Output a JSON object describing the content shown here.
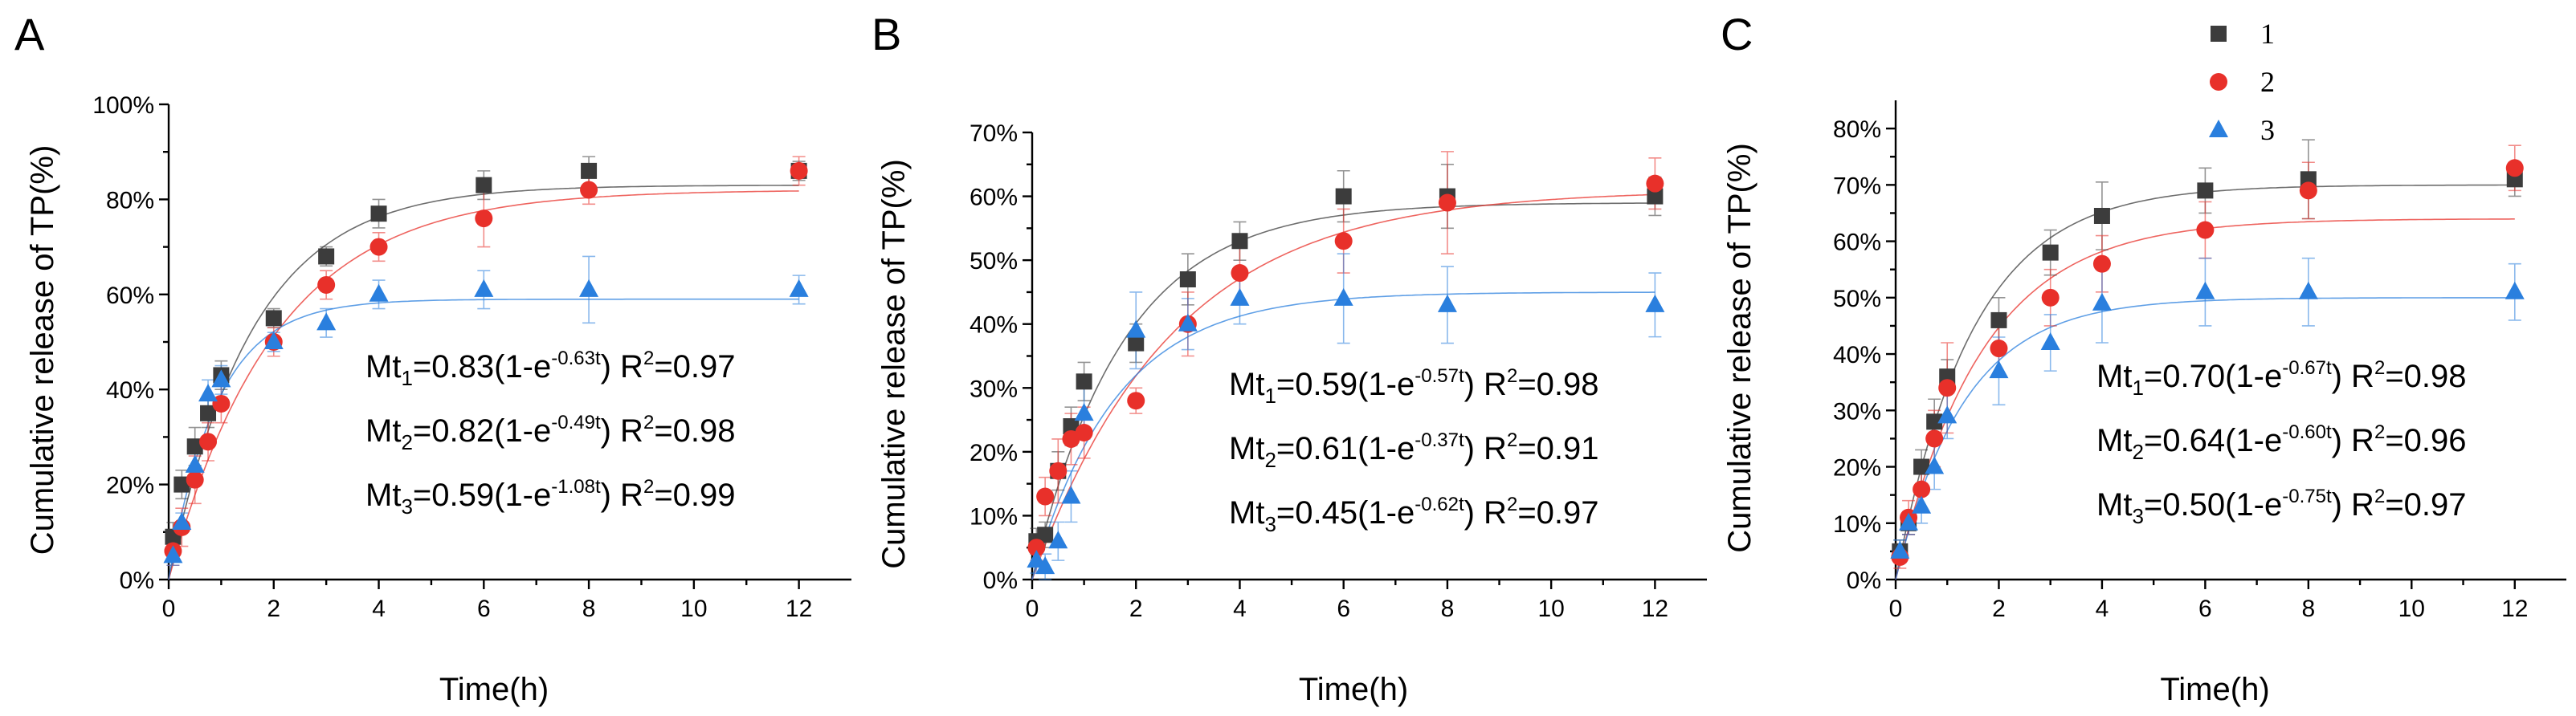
{
  "colors": {
    "s1": "#3c3c3c",
    "s2": "#e8302a",
    "s3": "#2a7fde"
  },
  "chart_data": [
    {
      "type": "scatter",
      "panel": "A",
      "xlabel": "Time(h)",
      "ylabel": "Cumulative release of TP(%)",
      "xlim": [
        0,
        13
      ],
      "xticks": [
        0,
        2,
        4,
        6,
        8,
        10,
        12
      ],
      "xtick_labels": [
        "0",
        "2",
        "4",
        "6",
        "8",
        "10",
        "12"
      ],
      "ylim": [
        0,
        1.0
      ],
      "yticks": [
        0,
        0.2,
        0.4,
        0.6,
        0.8,
        1.0
      ],
      "ytick_labels": [
        "0%",
        "20%",
        "40%",
        "60%",
        "80%",
        "100%"
      ],
      "x": [
        0.083,
        0.25,
        0.5,
        0.75,
        1,
        2,
        3,
        4,
        6,
        8,
        12
      ],
      "series": [
        {
          "name": "1",
          "marker": "square",
          "color": "#3c3c3c",
          "values": [
            0.09,
            0.2,
            0.28,
            0.35,
            0.43,
            0.55,
            0.68,
            0.77,
            0.83,
            0.86,
            0.86
          ],
          "errors": [
            0.03,
            0.03,
            0.04,
            0.03,
            0.03,
            0.02,
            0.02,
            0.03,
            0.03,
            0.03,
            0.02
          ],
          "fit": {
            "a": 0.83,
            "k": 0.63
          }
        },
        {
          "name": "2",
          "marker": "circle",
          "color": "#e8302a",
          "values": [
            0.06,
            0.11,
            0.21,
            0.29,
            0.37,
            0.5,
            0.62,
            0.7,
            0.76,
            0.82,
            0.86
          ],
          "errors": [
            0.03,
            0.04,
            0.05,
            0.04,
            0.04,
            0.03,
            0.03,
            0.03,
            0.06,
            0.03,
            0.03
          ],
          "fit": {
            "a": 0.82,
            "k": 0.49
          }
        },
        {
          "name": "3",
          "marker": "triangle",
          "color": "#2a7fde",
          "values": [
            0.05,
            0.12,
            0.24,
            0.39,
            0.42,
            0.5,
            0.54,
            0.6,
            0.61,
            0.61,
            0.61
          ],
          "errors": [
            0.02,
            0.02,
            0.03,
            0.03,
            0.03,
            0.02,
            0.03,
            0.03,
            0.04,
            0.07,
            0.03
          ],
          "fit": {
            "a": 0.59,
            "k": 1.08
          }
        }
      ],
      "equations": [
        {
          "pre": "Mt",
          "sub": "1",
          "mid": "=0.83(1-e",
          "sup": "-0.63t",
          "post": ") R",
          "r2sup": "2",
          "r2": "=0.97"
        },
        {
          "pre": "Mt",
          "sub": "2",
          "mid": "=0.82(1-e",
          "sup": "-0.49t",
          "post": ") R",
          "r2sup": "2",
          "r2": "=0.98"
        },
        {
          "pre": "Mt",
          "sub": "3",
          "mid": "=0.59(1-e",
          "sup": "-1.08t",
          "post": ") R",
          "r2sup": "2",
          "r2": "=0.99"
        }
      ]
    },
    {
      "type": "scatter",
      "panel": "B",
      "xlabel": "Time(h)",
      "ylabel": "Cumulative release of TP(%)",
      "xlim": [
        0,
        13
      ],
      "xticks": [
        0,
        2,
        4,
        6,
        8,
        10,
        12
      ],
      "xtick_labels": [
        "0",
        "2",
        "4",
        "6",
        "8",
        "10",
        "12"
      ],
      "ylim": [
        0,
        0.7
      ],
      "yticks": [
        0,
        0.1,
        0.2,
        0.3,
        0.4,
        0.5,
        0.6,
        0.7
      ],
      "ytick_labels": [
        "0%",
        "10%",
        "20%",
        "30%",
        "40%",
        "50%",
        "60%",
        "70%"
      ],
      "x": [
        0.083,
        0.25,
        0.5,
        0.75,
        1,
        2,
        3,
        4,
        6,
        8,
        12
      ],
      "series": [
        {
          "name": "1",
          "marker": "square",
          "color": "#3c3c3c",
          "values": [
            0.06,
            0.07,
            0.17,
            0.24,
            0.31,
            0.37,
            0.47,
            0.53,
            0.6,
            0.6,
            0.6
          ],
          "errors": [
            0.02,
            0.02,
            0.03,
            0.03,
            0.03,
            0.03,
            0.04,
            0.03,
            0.04,
            0.05,
            0.03
          ],
          "fit": {
            "a": 0.59,
            "k": 0.57
          }
        },
        {
          "name": "2",
          "marker": "circle",
          "color": "#e8302a",
          "values": [
            0.05,
            0.13,
            0.17,
            0.22,
            0.23,
            0.28,
            0.4,
            0.48,
            0.53,
            0.59,
            0.62
          ],
          "errors": [
            0.02,
            0.03,
            0.05,
            0.04,
            0.04,
            0.02,
            0.05,
            0.05,
            0.05,
            0.08,
            0.04
          ],
          "fit": {
            "a": 0.61,
            "k": 0.37
          }
        },
        {
          "name": "3",
          "marker": "triangle",
          "color": "#2a7fde",
          "values": [
            0.03,
            0.02,
            0.06,
            0.13,
            0.26,
            0.39,
            0.4,
            0.44,
            0.44,
            0.43,
            0.43
          ],
          "errors": [
            0.02,
            0.02,
            0.03,
            0.04,
            0.04,
            0.06,
            0.04,
            0.04,
            0.07,
            0.06,
            0.05
          ],
          "fit": {
            "a": 0.45,
            "k": 0.62
          }
        }
      ],
      "equations": [
        {
          "pre": "Mt",
          "sub": "1",
          "mid": "=0.59(1-e",
          "sup": "-0.57t",
          "post": ") R",
          "r2sup": "2",
          "r2": "=0.98"
        },
        {
          "pre": "Mt",
          "sub": "2",
          "mid": "=0.61(1-e",
          "sup": "-0.37t",
          "post": ") R",
          "r2sup": "2",
          "r2": "=0.91"
        },
        {
          "pre": "Mt",
          "sub": "3",
          "mid": "=0.45(1-e",
          "sup": "-0.62t",
          "post": ") R",
          "r2sup": "2",
          "r2": "=0.97"
        }
      ]
    },
    {
      "type": "scatter",
      "panel": "C",
      "xlabel": "Time(h)",
      "ylabel": "Cumulative release of TP(%)",
      "xlim": [
        0,
        13
      ],
      "xticks": [
        0,
        2,
        4,
        6,
        8,
        10,
        12
      ],
      "xtick_labels": [
        "0",
        "2",
        "4",
        "6",
        "8",
        "10",
        "12"
      ],
      "ylim": [
        0,
        0.85
      ],
      "yticks": [
        0,
        0.1,
        0.2,
        0.3,
        0.4,
        0.5,
        0.6,
        0.7,
        0.8
      ],
      "ytick_labels": [
        "0%",
        "10%",
        "20%",
        "30%",
        "40%",
        "50%",
        "60%",
        "70%",
        "80%"
      ],
      "x": [
        0.083,
        0.25,
        0.5,
        0.75,
        1,
        2,
        3,
        4,
        6,
        8,
        12
      ],
      "series": [
        {
          "name": "1",
          "marker": "square",
          "color": "#3c3c3c",
          "values": [
            0.05,
            0.1,
            0.2,
            0.28,
            0.36,
            0.46,
            0.58,
            0.645,
            0.69,
            0.71,
            0.71
          ],
          "errors": [
            0.02,
            0.02,
            0.03,
            0.04,
            0.03,
            0.04,
            0.04,
            0.06,
            0.04,
            0.07,
            0.03
          ],
          "fit": {
            "a": 0.7,
            "k": 0.67
          }
        },
        {
          "name": "2",
          "marker": "circle",
          "color": "#e8302a",
          "values": [
            0.04,
            0.11,
            0.16,
            0.25,
            0.34,
            0.41,
            0.5,
            0.56,
            0.62,
            0.69,
            0.73
          ],
          "errors": [
            0.02,
            0.03,
            0.04,
            0.05,
            0.08,
            0.05,
            0.05,
            0.05,
            0.05,
            0.05,
            0.04
          ],
          "fit": {
            "a": 0.64,
            "k": 0.6
          }
        },
        {
          "name": "3",
          "marker": "triangle",
          "color": "#2a7fde",
          "values": [
            0.05,
            0.1,
            0.13,
            0.2,
            0.29,
            0.37,
            0.42,
            0.49,
            0.51,
            0.51,
            0.51
          ],
          "errors": [
            0.02,
            0.02,
            0.03,
            0.04,
            0.04,
            0.06,
            0.05,
            0.07,
            0.06,
            0.06,
            0.05
          ],
          "fit": {
            "a": 0.5,
            "k": 0.75
          }
        }
      ],
      "legend": {
        "position": "top-right",
        "entries": [
          "1",
          "2",
          "3"
        ]
      },
      "equations": [
        {
          "pre": "Mt",
          "sub": "1",
          "mid": "=0.70(1-e",
          "sup": "-0.67t",
          "post": ") R",
          "r2sup": "2",
          "r2": "=0.98"
        },
        {
          "pre": "Mt",
          "sub": "2",
          "mid": "=0.64(1-e",
          "sup": "-0.60t",
          "post": ") R",
          "r2sup": "2",
          "r2": "=0.96"
        },
        {
          "pre": "Mt",
          "sub": "3",
          "mid": "=0.50(1-e",
          "sup": "-0.75t",
          "post": ") R",
          "r2sup": "2",
          "r2": "=0.97"
        }
      ]
    }
  ]
}
